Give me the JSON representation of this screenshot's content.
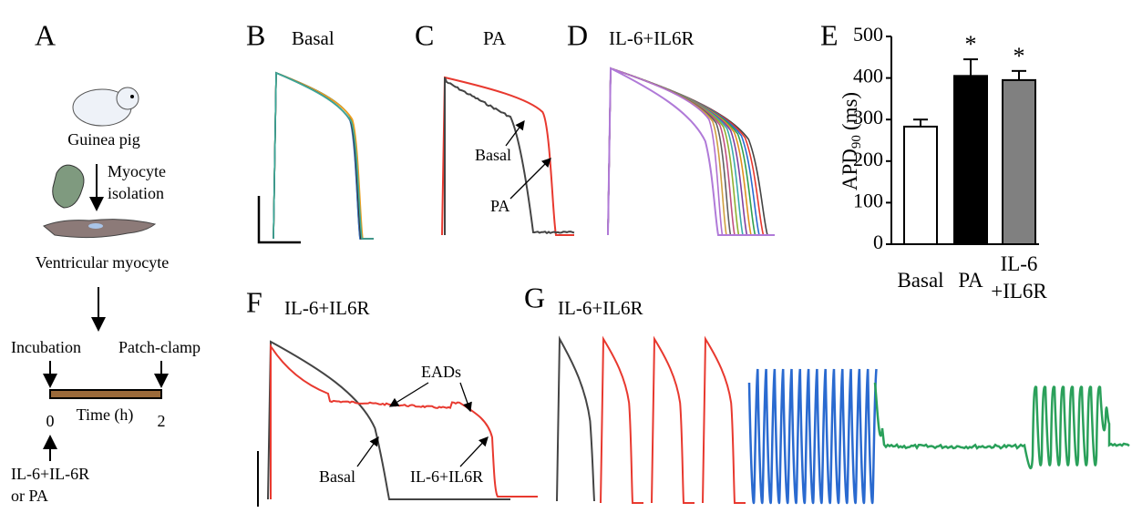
{
  "panel_a": {
    "label": "A",
    "animal": "Guinea pig",
    "step_top": "Myocyte",
    "step_bottom": "isolation",
    "cell": "Ventricular myocyte",
    "start_event": "Incubation",
    "end_event": "Patch-clamp",
    "time_start": 0,
    "time_axis": "Time (h)",
    "time_end": 2,
    "treatment_top": "IL-6+IL-6R",
    "treatment_bottom": "or PA"
  },
  "panel_b": {
    "label": "B",
    "title": "Basal"
  },
  "panel_c": {
    "label": "C",
    "title": "PA",
    "trace_basal": "Basal",
    "trace_pa": "PA"
  },
  "panel_d": {
    "label": "D",
    "title": "IL-6+IL6R"
  },
  "panel_f": {
    "label": "F",
    "title": "IL-6+IL6R",
    "eads": "EADs",
    "trace_basal": "Basal",
    "trace_il6": "IL-6+IL6R"
  },
  "panel_g": {
    "label": "G",
    "title": "IL-6+IL6R"
  },
  "chart_data": {
    "type": "bar",
    "panel_label": "E",
    "ylabel": {
      "main": "APD",
      "sub": "90",
      "unit": "(ms)"
    },
    "categories": [
      "Basal",
      "PA",
      "IL-6\n+IL6R"
    ],
    "values": [
      283,
      405,
      395
    ],
    "errors": [
      17,
      40,
      22
    ],
    "significance": [
      null,
      "*",
      "*"
    ],
    "colors": [
      "#ffffff",
      "#000000",
      "#808080"
    ],
    "ylim": [
      0,
      500
    ],
    "yticks": [
      0,
      100,
      200,
      300,
      400,
      500
    ]
  }
}
